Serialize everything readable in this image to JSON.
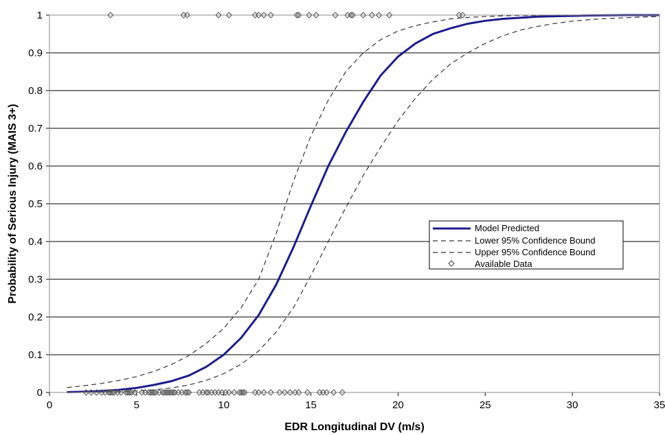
{
  "chart_data": {
    "type": "line",
    "xlabel": "EDR Longitudinal DV (m/s)",
    "ylabel": "Probability of Serious Injury (MAIS 3+)",
    "xlim": [
      0,
      35
    ],
    "ylim": [
      0,
      1
    ],
    "x_ticks": [
      "0",
      "5",
      "10",
      "15",
      "20",
      "25",
      "30",
      "35"
    ],
    "y_ticks": [
      "0",
      "0.1",
      "0.2",
      "0.3",
      "0.4",
      "0.5",
      "0.6",
      "0.7",
      "0.8",
      "0.9",
      "1"
    ],
    "grid": "horizontal",
    "legend_position": "center-right",
    "series": [
      {
        "name": "Model Predicted",
        "style": "solid",
        "color": "#1c1c8c",
        "x": [
          1,
          2,
          3,
          4,
          5,
          6,
          7,
          8,
          9,
          10,
          11,
          12,
          13,
          14,
          15,
          16,
          17,
          18,
          19,
          20,
          21,
          22,
          23,
          24,
          25,
          26,
          27,
          28,
          29,
          30,
          31,
          32,
          33,
          34,
          35
        ],
        "y": [
          0.001,
          0.002,
          0.004,
          0.007,
          0.012,
          0.02,
          0.03,
          0.045,
          0.068,
          0.1,
          0.145,
          0.205,
          0.285,
          0.385,
          0.495,
          0.6,
          0.69,
          0.77,
          0.84,
          0.89,
          0.925,
          0.95,
          0.965,
          0.977,
          0.985,
          0.99,
          0.993,
          0.996,
          0.997,
          0.998,
          0.999,
          0.9995,
          1.0,
          1.0,
          1.0
        ]
      },
      {
        "name": "Lower 95% Confidence Bound",
        "style": "dashed",
        "color": "#333333",
        "x": [
          1,
          2,
          3,
          4,
          5,
          6,
          7,
          8,
          9,
          10,
          11,
          12,
          13,
          14,
          15,
          16,
          17,
          18,
          19,
          20,
          21,
          22,
          23,
          24,
          25,
          26,
          27,
          28,
          29,
          30,
          31,
          32,
          33,
          34,
          35
        ],
        "y": [
          0.013,
          0.018,
          0.024,
          0.032,
          0.042,
          0.056,
          0.074,
          0.098,
          0.13,
          0.17,
          0.225,
          0.3,
          0.42,
          0.56,
          0.68,
          0.775,
          0.85,
          0.9,
          0.935,
          0.958,
          0.972,
          0.982,
          0.99,
          0.994,
          0.996,
          0.998,
          0.999,
          0.999,
          1.0,
          1.0,
          1.0,
          1.0,
          1.0,
          1.0,
          1.0
        ]
      },
      {
        "name": "Upper 95% Confidence Bound",
        "style": "dashed",
        "color": "#333333",
        "x": [
          1,
          2,
          3,
          4,
          5,
          6,
          7,
          8,
          9,
          10,
          11,
          12,
          13,
          14,
          15,
          16,
          17,
          18,
          19,
          20,
          21,
          22,
          23,
          24,
          25,
          26,
          27,
          28,
          29,
          30,
          31,
          32,
          33,
          34,
          35
        ],
        "y": [
          0.0,
          0.0,
          0.001,
          0.002,
          0.004,
          0.007,
          0.012,
          0.02,
          0.032,
          0.05,
          0.075,
          0.11,
          0.16,
          0.225,
          0.31,
          0.4,
          0.49,
          0.575,
          0.65,
          0.72,
          0.78,
          0.83,
          0.87,
          0.9,
          0.925,
          0.945,
          0.96,
          0.97,
          0.978,
          0.984,
          0.988,
          0.991,
          0.993,
          0.995,
          0.996
        ]
      },
      {
        "name": "Available Data",
        "style": "marker-diamond",
        "color": "#555555",
        "points_y1": [
          3.5,
          7.7,
          7.9,
          9.7,
          10.3,
          11.8,
          12.0,
          12.3,
          12.7,
          14.2,
          14.3,
          14.9,
          15.3,
          16.4,
          17.1,
          17.3,
          17.4,
          18.0,
          18.5,
          18.9,
          19.5,
          23.5,
          23.7
        ],
        "points_y0": [
          2.1,
          2.4,
          2.7,
          3.0,
          3.2,
          3.4,
          3.5,
          3.6,
          3.7,
          3.9,
          4.1,
          4.4,
          4.5,
          4.6,
          4.7,
          4.9,
          5.3,
          5.5,
          5.7,
          5.8,
          5.9,
          6.0,
          6.1,
          6.3,
          6.5,
          6.6,
          6.7,
          6.8,
          6.9,
          7.0,
          7.1,
          7.2,
          7.4,
          7.6,
          7.8,
          7.9,
          8.0,
          8.6,
          8.8,
          9.0,
          9.1,
          9.3,
          9.5,
          9.7,
          9.9,
          10.1,
          10.3,
          10.6,
          10.9,
          11.0,
          11.1,
          11.2,
          11.8,
          12.0,
          12.3,
          12.7,
          13.2,
          13.5,
          13.8,
          14.1,
          14.3,
          14.8,
          15.5,
          15.7,
          15.9,
          16.3,
          16.8
        ]
      }
    ]
  }
}
